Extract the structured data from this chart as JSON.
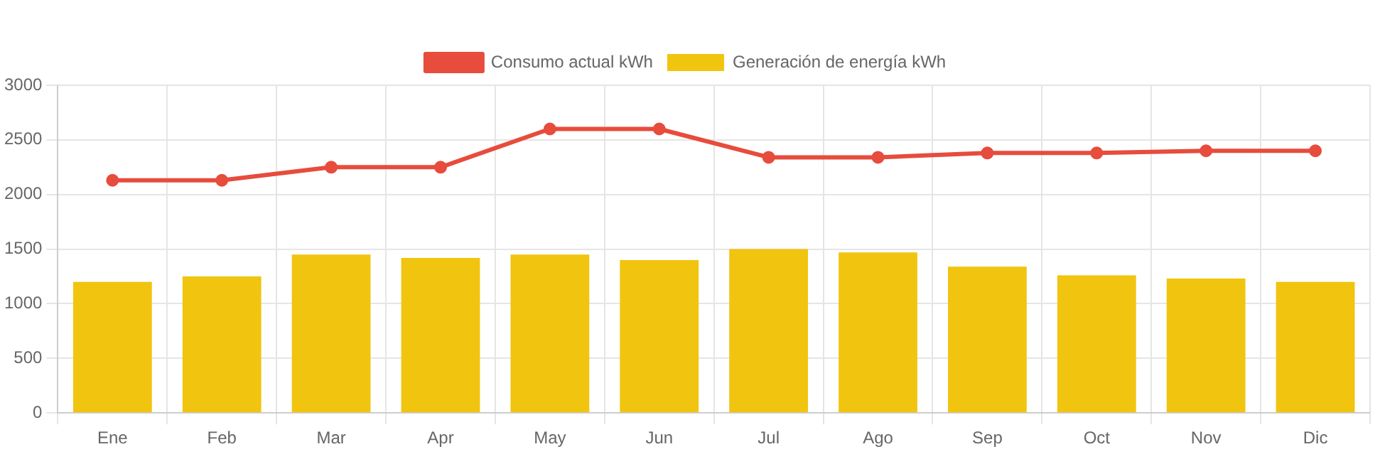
{
  "chart_data": {
    "type": "bar",
    "categories": [
      "Ene",
      "Feb",
      "Mar",
      "Apr",
      "May",
      "Jun",
      "Jul",
      "Ago",
      "Sep",
      "Oct",
      "Nov",
      "Dic"
    ],
    "series": [
      {
        "name": "Consumo actual kWh",
        "type": "line",
        "color": "#e74c3c",
        "values": [
          2130,
          2130,
          2250,
          2250,
          2600,
          2600,
          2340,
          2340,
          2380,
          2380,
          2400,
          2400
        ]
      },
      {
        "name": "Generación de energía kWh",
        "color": "#f1c40f",
        "values": [
          1200,
          1250,
          1450,
          1420,
          1450,
          1400,
          1500,
          1470,
          1340,
          1260,
          1230,
          1200
        ]
      }
    ],
    "ylim": [
      0,
      3000
    ],
    "yticks": [
      0,
      500,
      1000,
      1500,
      2000,
      2500,
      3000
    ],
    "grid": true,
    "legend": "top",
    "marker": "circle",
    "line_style": "solid"
  }
}
